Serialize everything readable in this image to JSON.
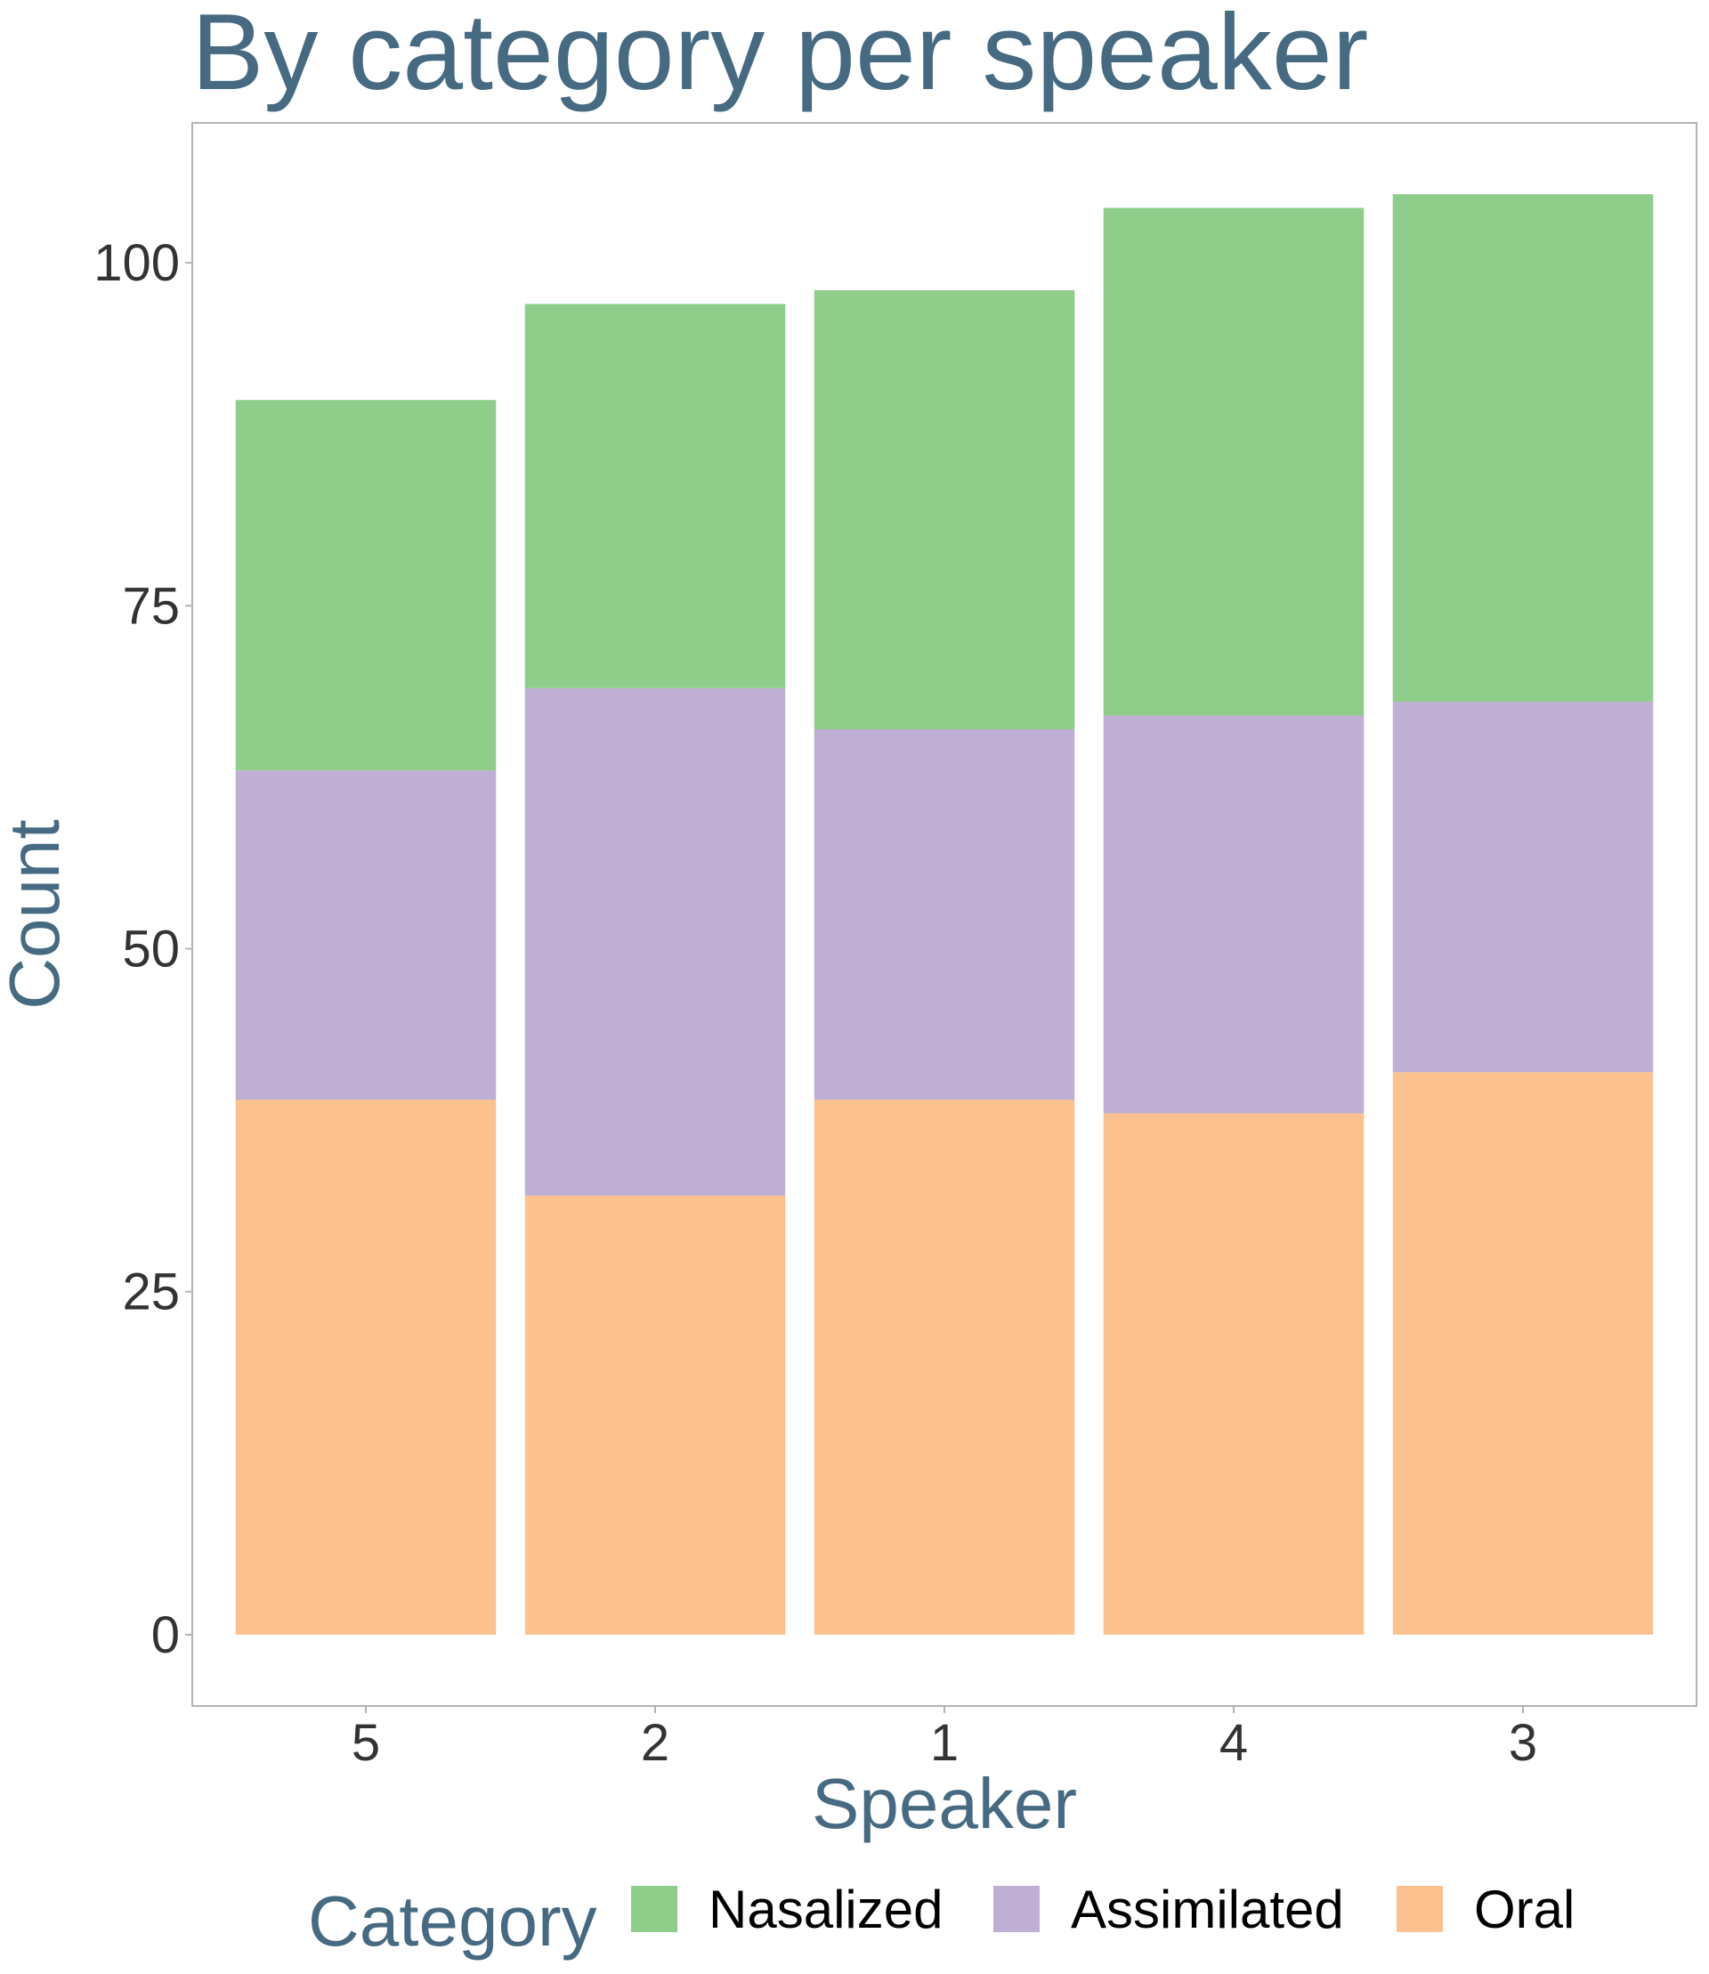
{
  "chart_data": {
    "type": "bar",
    "stacked": true,
    "title": "By category per speaker",
    "xlabel": "Speaker",
    "ylabel": "Count",
    "categories": [
      "5",
      "2",
      "1",
      "4",
      "3"
    ],
    "ylim": [
      -5.2,
      110.2
    ],
    "yticks": [
      0,
      25,
      50,
      75,
      100
    ],
    "grid": false,
    "legend": {
      "title": "Category",
      "placement": "bottom"
    },
    "series": [
      {
        "name": "Oral",
        "color": "#fbc290",
        "values": [
          39,
          32,
          39,
          38,
          41
        ]
      },
      {
        "name": "Assimilated",
        "color": "#c0afd4",
        "values": [
          24,
          37,
          27,
          29,
          27
        ]
      },
      {
        "name": "Nasalized",
        "color": "#8ecd8a",
        "values": [
          27,
          28,
          32,
          37,
          37
        ]
      }
    ],
    "legend_order": [
      "Nasalized",
      "Assimilated",
      "Oral"
    ]
  }
}
